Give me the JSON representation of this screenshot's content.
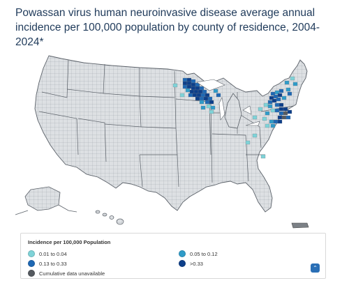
{
  "title": "Powassan virus human neuroinvasive disease average annual incidence per 100,000 population by county of residence, 2004-2024*",
  "colors": {
    "background_county": "#dde0e3",
    "county_border": "#8a8f94",
    "state_border": "#5a6068",
    "unavailable": "#555a60",
    "range_1": "#7fd3d8",
    "range_2": "#2f9cc9",
    "range_3": "#1e68b4",
    "range_4": "#0d3f8a"
  },
  "legend": {
    "title": "Incidence per 100,000 Population",
    "items": [
      {
        "label": "0.01 to 0.04",
        "color": "#7fd3d8"
      },
      {
        "label": "0.05 to 0.12",
        "color": "#2f9cc9"
      },
      {
        "label": "0.13 to 0.33",
        "color": "#1e68b4"
      },
      {
        "label": ">0.33",
        "color": "#0d3f8a"
      },
      {
        "label": "Cumulative data unavailable",
        "color": "#555a60"
      }
    ]
  },
  "scroll_top": {
    "icon": "chevron-up-icon",
    "glyph": "⌃"
  }
}
